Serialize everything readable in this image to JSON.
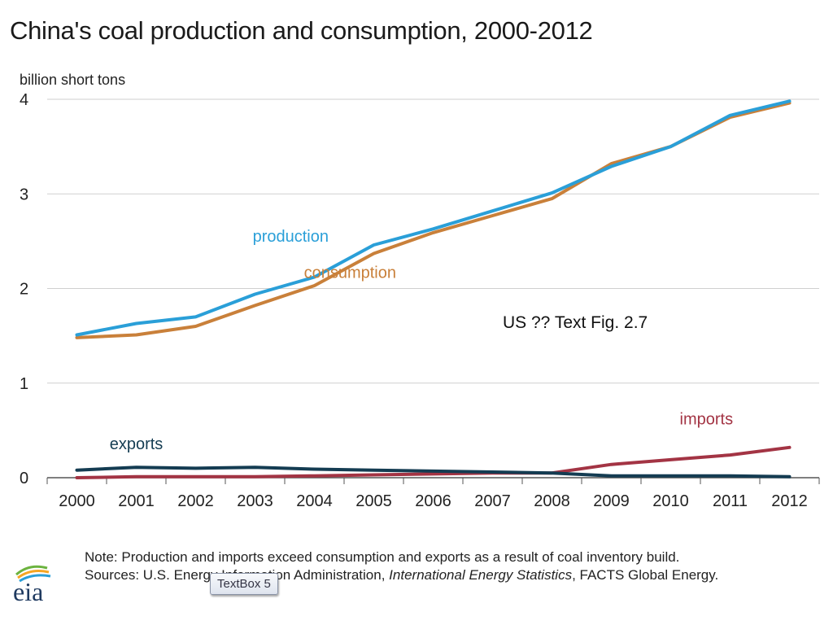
{
  "title": "China's coal production and consumption, 2000-2012",
  "overlay_text": "US ??  Text Fig. 2.7",
  "textbox_tag": "TextBox 5",
  "logo_text": "eia",
  "note": {
    "line1": "Note: Production and imports exceed consumption and exports as a result of coal inventory build.",
    "sources_prefix": "Sources: U.S. Energy Information Administration, ",
    "sources_italic": "International Energy Statistics",
    "sources_suffix": ", FACTS  Global Energy."
  },
  "colors": {
    "production": "#2a9fd8",
    "consumption": "#c9803a",
    "exports": "#143c52",
    "imports": "#a33444",
    "grid": "#cfcfcf",
    "axis": "#555555"
  },
  "chart_data": {
    "type": "line",
    "title": "China's coal production and consumption, 2000-2012",
    "ylabel": "billion short tons",
    "xlabel": "",
    "ylim": [
      0,
      4
    ],
    "yticks": [
      "0",
      "1",
      "2",
      "3",
      "4"
    ],
    "grid": true,
    "x": [
      "2000",
      "2001",
      "2002",
      "2003",
      "2004",
      "2005",
      "2006",
      "2007",
      "2008",
      "2009",
      "2010",
      "2011",
      "2012"
    ],
    "series": [
      {
        "name": "production",
        "color": "#2a9fd8",
        "values": [
          1.51,
          1.63,
          1.7,
          1.94,
          2.12,
          2.46,
          2.63,
          2.82,
          3.01,
          3.29,
          3.5,
          3.83,
          3.98
        ]
      },
      {
        "name": "consumption",
        "color": "#c9803a",
        "values": [
          1.48,
          1.51,
          1.6,
          1.82,
          2.03,
          2.37,
          2.59,
          2.77,
          2.95,
          3.32,
          3.5,
          3.81,
          3.96
        ]
      },
      {
        "name": "exports",
        "color": "#143c52",
        "values": [
          0.08,
          0.11,
          0.1,
          0.11,
          0.09,
          0.08,
          0.07,
          0.06,
          0.05,
          0.02,
          0.02,
          0.02,
          0.01
        ]
      },
      {
        "name": "imports",
        "color": "#a33444",
        "values": [
          0.0,
          0.01,
          0.01,
          0.01,
          0.02,
          0.03,
          0.04,
          0.05,
          0.05,
          0.14,
          0.19,
          0.24,
          0.32
        ]
      }
    ]
  }
}
